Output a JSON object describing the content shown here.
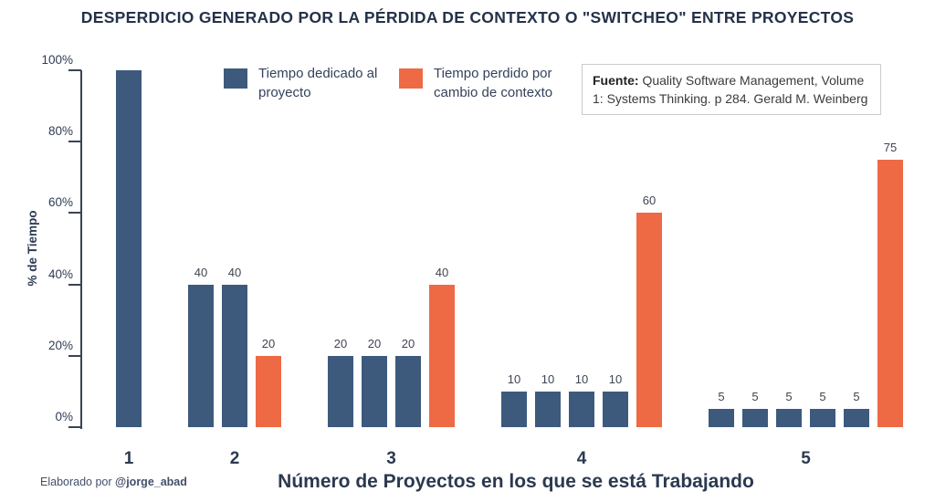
{
  "page": {
    "title": "DESPERDICIO GENERADO POR LA PÉRDIDA DE CONTEXTO O \"SWITCHEO\" ENTRE PROYECTOS",
    "credit_prefix": "Elaborado por ",
    "credit_handle": "@jorge_abad"
  },
  "legend": {
    "items": [
      {
        "label": "Tiempo dedicado al proyecto",
        "color": "#3D5A7D"
      },
      {
        "label": "Tiempo perdido por cambio de contexto",
        "color": "#ED6A45"
      }
    ]
  },
  "source_box": {
    "label": "Fuente:",
    "text": "Quality Software Management, Volume 1: Systems Thinking. p 284. Gerald M. Weinberg"
  },
  "chart_data": {
    "type": "bar",
    "title": "DESPERDICIO GENERADO POR LA PÉRDIDA DE CONTEXTO O \"SWITCHEO\" ENTRE PROYECTOS",
    "xlabel": "Número de Proyectos en los que se está Trabajando",
    "ylabel": "% de Tiempo",
    "ylim": [
      0,
      100
    ],
    "ytick_labels": [
      "0%",
      "20%",
      "40%",
      "60%",
      "80%",
      "100%"
    ],
    "grid": false,
    "legend_position": "top-left",
    "series_colors": {
      "dedicated": "#3D5A7D",
      "lost": "#ED6A45"
    },
    "series_names": {
      "dedicated": "Tiempo dedicado al proyecto",
      "lost": "Tiempo perdido por cambio de contexto"
    },
    "groups": [
      {
        "category": "1",
        "dedicated": [
          100
        ],
        "lost": null,
        "show_bar_labels": false
      },
      {
        "category": "2",
        "dedicated": [
          40,
          40
        ],
        "lost": 20,
        "show_bar_labels": true
      },
      {
        "category": "3",
        "dedicated": [
          20,
          20,
          20
        ],
        "lost": 40,
        "show_bar_labels": true
      },
      {
        "category": "4",
        "dedicated": [
          10,
          10,
          10,
          10
        ],
        "lost": 60,
        "show_bar_labels": true
      },
      {
        "category": "5",
        "dedicated": [
          5,
          5,
          5,
          5,
          5
        ],
        "lost": 75,
        "show_bar_labels": true
      }
    ]
  }
}
